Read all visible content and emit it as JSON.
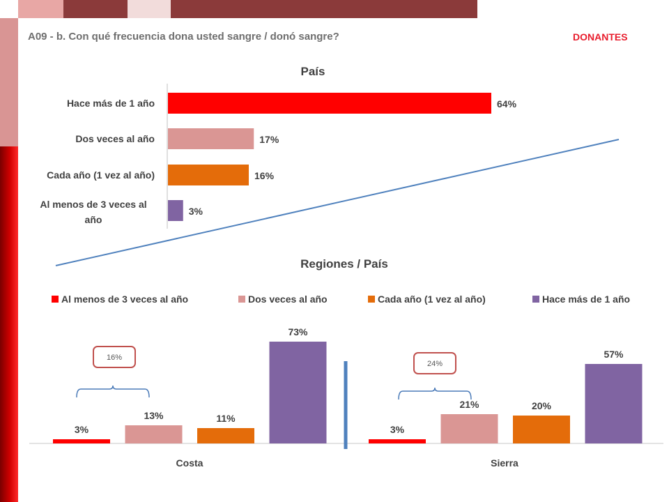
{
  "header": {
    "title": "A09 - b. Con qué frecuencia dona usted sangre  / donó sangre?",
    "badge": "DONANTES"
  },
  "colors": {
    "red": "#ff0000",
    "pink": "#da9694",
    "orange": "#e46c0a",
    "purple": "#8064a2",
    "accent_dark": "#8b3a3a",
    "accent_light": "#f2dcdb",
    "badge": "#e81c2c",
    "separator": "#4f81bd",
    "bracket": "#4a7ab8",
    "callout_border": "#c0504d"
  },
  "chart_data": [
    {
      "type": "bar",
      "orientation": "horizontal",
      "title": "País",
      "categories": [
        "Hace más de 1 año",
        "Dos veces al año",
        "Cada año (1 vez al año)",
        "Al menos de 3 veces al año"
      ],
      "values": [
        64,
        17,
        16,
        3
      ],
      "value_labels": [
        "64%",
        "17%",
        "16%",
        "3%"
      ],
      "colors": [
        "#ff0000",
        "#da9694",
        "#e46c0a",
        "#8064a2"
      ],
      "xlim": [
        0,
        100
      ]
    },
    {
      "type": "bar",
      "title": "Regiones / País",
      "legend_position": "top",
      "categories": [
        "Costa",
        "Sierra"
      ],
      "ylim": [
        0,
        80
      ],
      "series": [
        {
          "name": "Al menos de 3 veces al año",
          "color": "#ff0000",
          "values": [
            3,
            3
          ],
          "labels": [
            "3%",
            "3%"
          ]
        },
        {
          "name": "Dos veces al año",
          "color": "#da9694",
          "values": [
            13,
            21
          ],
          "labels": [
            "13%",
            "21%"
          ]
        },
        {
          "name": "Cada año (1 vez al año)",
          "color": "#e46c0a",
          "values": [
            11,
            20
          ],
          "labels": [
            "11%",
            "20%"
          ]
        },
        {
          "name": "Hace más de 1 año",
          "color": "#8064a2",
          "values": [
            73,
            57
          ],
          "labels": [
            "73%",
            "57%"
          ]
        }
      ],
      "annotations": [
        "16%",
        "24%"
      ]
    }
  ]
}
